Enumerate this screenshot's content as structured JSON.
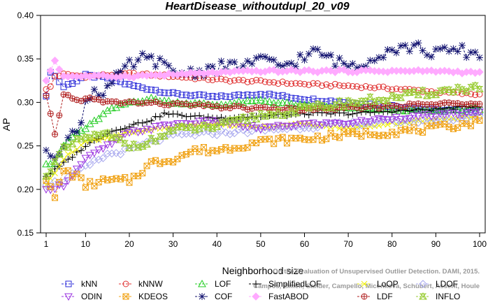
{
  "chart_data": {
    "type": "line",
    "title": "HeartDisease_withoutdupl_20_v09",
    "xlabel": "Neighborhood size",
    "ylabel": "AP",
    "xlim": [
      1,
      100
    ],
    "ylim": [
      0.15,
      0.4
    ],
    "x_ticks": [
      1,
      10,
      20,
      30,
      40,
      50,
      60,
      70,
      80,
      90,
      100
    ],
    "y_ticks": [
      0.15,
      0.2,
      0.25,
      0.3,
      0.35,
      0.4
    ],
    "x_tick_labels": [
      "1",
      "10",
      "20",
      "30",
      "40",
      "50",
      "60",
      "70",
      "80",
      "90",
      "100"
    ],
    "y_tick_labels": [
      "0.15",
      "0.20",
      "0.25",
      "0.30",
      "0.35",
      "0.40"
    ],
    "grid": false,
    "legend_position": "bottom",
    "series": [
      {
        "name": "kNN",
        "color": "#2b2bd8",
        "marker": "square",
        "knots": [
          [
            1,
            0.307
          ],
          [
            2,
            0.336
          ],
          [
            3,
            0.33
          ],
          [
            5,
            0.318
          ],
          [
            8,
            0.325
          ],
          [
            10,
            0.331
          ],
          [
            15,
            0.328
          ],
          [
            20,
            0.32
          ],
          [
            30,
            0.31
          ],
          [
            40,
            0.306
          ],
          [
            50,
            0.31
          ],
          [
            60,
            0.304
          ],
          [
            70,
            0.3
          ],
          [
            80,
            0.296
          ],
          [
            90,
            0.291
          ],
          [
            100,
            0.29
          ]
        ]
      },
      {
        "name": "kNNW",
        "color": "#e03030",
        "marker": "circle",
        "knots": [
          [
            1,
            0.315
          ],
          [
            2,
            0.318
          ],
          [
            3,
            0.33
          ],
          [
            5,
            0.332
          ],
          [
            10,
            0.33
          ],
          [
            20,
            0.333
          ],
          [
            30,
            0.33
          ],
          [
            40,
            0.326
          ],
          [
            50,
            0.324
          ],
          [
            60,
            0.321
          ],
          [
            70,
            0.319
          ],
          [
            80,
            0.316
          ],
          [
            90,
            0.312
          ],
          [
            100,
            0.309
          ]
        ]
      },
      {
        "name": "LOF",
        "color": "#22cc22",
        "marker": "triangle-up",
        "knots": [
          [
            1,
            0.229
          ],
          [
            3,
            0.23
          ],
          [
            5,
            0.25
          ],
          [
            8,
            0.265
          ],
          [
            10,
            0.27
          ],
          [
            15,
            0.29
          ],
          [
            20,
            0.3
          ],
          [
            25,
            0.304
          ],
          [
            30,
            0.3
          ],
          [
            40,
            0.297
          ],
          [
            50,
            0.302
          ],
          [
            60,
            0.296
          ],
          [
            70,
            0.293
          ],
          [
            80,
            0.292
          ],
          [
            90,
            0.29
          ],
          [
            100,
            0.293
          ]
        ]
      },
      {
        "name": "SimplifiedLOF",
        "color": "#000000",
        "marker": "plus",
        "knots": [
          [
            1,
            0.215
          ],
          [
            5,
            0.23
          ],
          [
            10,
            0.25
          ],
          [
            15,
            0.265
          ],
          [
            20,
            0.273
          ],
          [
            25,
            0.28
          ],
          [
            28,
            0.287
          ],
          [
            32,
            0.285
          ],
          [
            40,
            0.282
          ],
          [
            50,
            0.284
          ],
          [
            60,
            0.287
          ],
          [
            70,
            0.287
          ],
          [
            80,
            0.29
          ],
          [
            90,
            0.292
          ],
          [
            100,
            0.296
          ]
        ]
      },
      {
        "name": "LoOP",
        "color": "#eeee00",
        "marker": "x",
        "knots": [
          [
            1,
            0.205
          ],
          [
            5,
            0.235
          ],
          [
            10,
            0.255
          ],
          [
            20,
            0.265
          ],
          [
            30,
            0.272
          ],
          [
            40,
            0.275
          ],
          [
            50,
            0.272
          ],
          [
            60,
            0.275
          ],
          [
            70,
            0.27
          ],
          [
            80,
            0.276
          ],
          [
            90,
            0.28
          ],
          [
            100,
            0.285
          ]
        ]
      },
      {
        "name": "LDOF",
        "color": "#a9a9ee",
        "marker": "diamond",
        "knots": [
          [
            1,
            0.205
          ],
          [
            5,
            0.21
          ],
          [
            10,
            0.225
          ],
          [
            15,
            0.24
          ],
          [
            20,
            0.245
          ],
          [
            25,
            0.255
          ],
          [
            30,
            0.262
          ],
          [
            40,
            0.265
          ],
          [
            50,
            0.268
          ],
          [
            60,
            0.272
          ],
          [
            70,
            0.275
          ],
          [
            80,
            0.278
          ],
          [
            90,
            0.28
          ],
          [
            100,
            0.284
          ]
        ]
      },
      {
        "name": "ODIN",
        "color": "#9a33e0",
        "marker": "triangle-down",
        "knots": [
          [
            1,
            0.2
          ],
          [
            5,
            0.205
          ],
          [
            10,
            0.235
          ],
          [
            15,
            0.25
          ],
          [
            20,
            0.265
          ],
          [
            30,
            0.275
          ],
          [
            40,
            0.278
          ],
          [
            50,
            0.27
          ],
          [
            60,
            0.275
          ],
          [
            70,
            0.276
          ],
          [
            80,
            0.282
          ],
          [
            90,
            0.285
          ],
          [
            100,
            0.288
          ]
        ]
      },
      {
        "name": "KDEOS",
        "color": "#f0a010",
        "marker": "boxed-x",
        "knots": [
          [
            1,
            0.21
          ],
          [
            3,
            0.19
          ],
          [
            5,
            0.222
          ],
          [
            8,
            0.215
          ],
          [
            10,
            0.205
          ],
          [
            15,
            0.21
          ],
          [
            20,
            0.21
          ],
          [
            25,
            0.23
          ],
          [
            30,
            0.235
          ],
          [
            35,
            0.245
          ],
          [
            40,
            0.245
          ],
          [
            50,
            0.255
          ],
          [
            60,
            0.258
          ],
          [
            70,
            0.263
          ],
          [
            80,
            0.266
          ],
          [
            90,
            0.27
          ],
          [
            100,
            0.278
          ]
        ]
      },
      {
        "name": "COF",
        "color": "#10106e",
        "marker": "star",
        "knots": [
          [
            1,
            0.245
          ],
          [
            3,
            0.24
          ],
          [
            5,
            0.255
          ],
          [
            8,
            0.265
          ],
          [
            10,
            0.3
          ],
          [
            12,
            0.315
          ],
          [
            14,
            0.312
          ],
          [
            16,
            0.322
          ],
          [
            20,
            0.342
          ],
          [
            23,
            0.35
          ],
          [
            26,
            0.348
          ],
          [
            30,
            0.334
          ],
          [
            35,
            0.335
          ],
          [
            40,
            0.34
          ],
          [
            45,
            0.342
          ],
          [
            50,
            0.348
          ],
          [
            55,
            0.342
          ],
          [
            60,
            0.352
          ],
          [
            63,
            0.358
          ],
          [
            68,
            0.345
          ],
          [
            72,
            0.342
          ],
          [
            76,
            0.354
          ],
          [
            80,
            0.362
          ],
          [
            85,
            0.364
          ],
          [
            90,
            0.356
          ],
          [
            95,
            0.36
          ],
          [
            100,
            0.355
          ]
        ]
      },
      {
        "name": "FastABOD",
        "color": "#ffaaff",
        "marker": "diamond-filled",
        "knots": [
          [
            1,
            0.325
          ],
          [
            3,
            0.348
          ],
          [
            5,
            0.33
          ],
          [
            10,
            0.33
          ],
          [
            20,
            0.33
          ],
          [
            30,
            0.332
          ],
          [
            40,
            0.334
          ],
          [
            50,
            0.336
          ],
          [
            60,
            0.336
          ],
          [
            70,
            0.336
          ],
          [
            80,
            0.336
          ],
          [
            90,
            0.336
          ],
          [
            100,
            0.334
          ]
        ]
      },
      {
        "name": "LDF",
        "color": "#b02020",
        "marker": "circle-plus",
        "knots": [
          [
            1,
            0.308
          ],
          [
            3,
            0.262
          ],
          [
            5,
            0.31
          ],
          [
            8,
            0.302
          ],
          [
            10,
            0.305
          ],
          [
            15,
            0.3
          ],
          [
            20,
            0.3
          ],
          [
            30,
            0.298
          ],
          [
            40,
            0.295
          ],
          [
            50,
            0.293
          ],
          [
            60,
            0.292
          ],
          [
            70,
            0.293
          ],
          [
            80,
            0.296
          ],
          [
            90,
            0.298
          ],
          [
            100,
            0.3
          ]
        ]
      },
      {
        "name": "INFLO",
        "color": "#99cc33",
        "marker": "hourglass",
        "knots": [
          [
            1,
            0.215
          ],
          [
            3,
            0.23
          ],
          [
            5,
            0.245
          ],
          [
            10,
            0.26
          ],
          [
            15,
            0.262
          ],
          [
            20,
            0.25
          ],
          [
            25,
            0.255
          ],
          [
            30,
            0.268
          ],
          [
            40,
            0.272
          ],
          [
            50,
            0.285
          ],
          [
            60,
            0.292
          ],
          [
            70,
            0.3
          ],
          [
            80,
            0.305
          ],
          [
            90,
            0.312
          ],
          [
            100,
            0.318
          ]
        ]
      }
    ],
    "annotation": [
      "Campos, Zimek, Sander, Campello, Micenkova, Schubert, Assent, Houle",
      "On the Evaluation of Unsupervised Outlier Detection. DAMI, 2015."
    ]
  }
}
